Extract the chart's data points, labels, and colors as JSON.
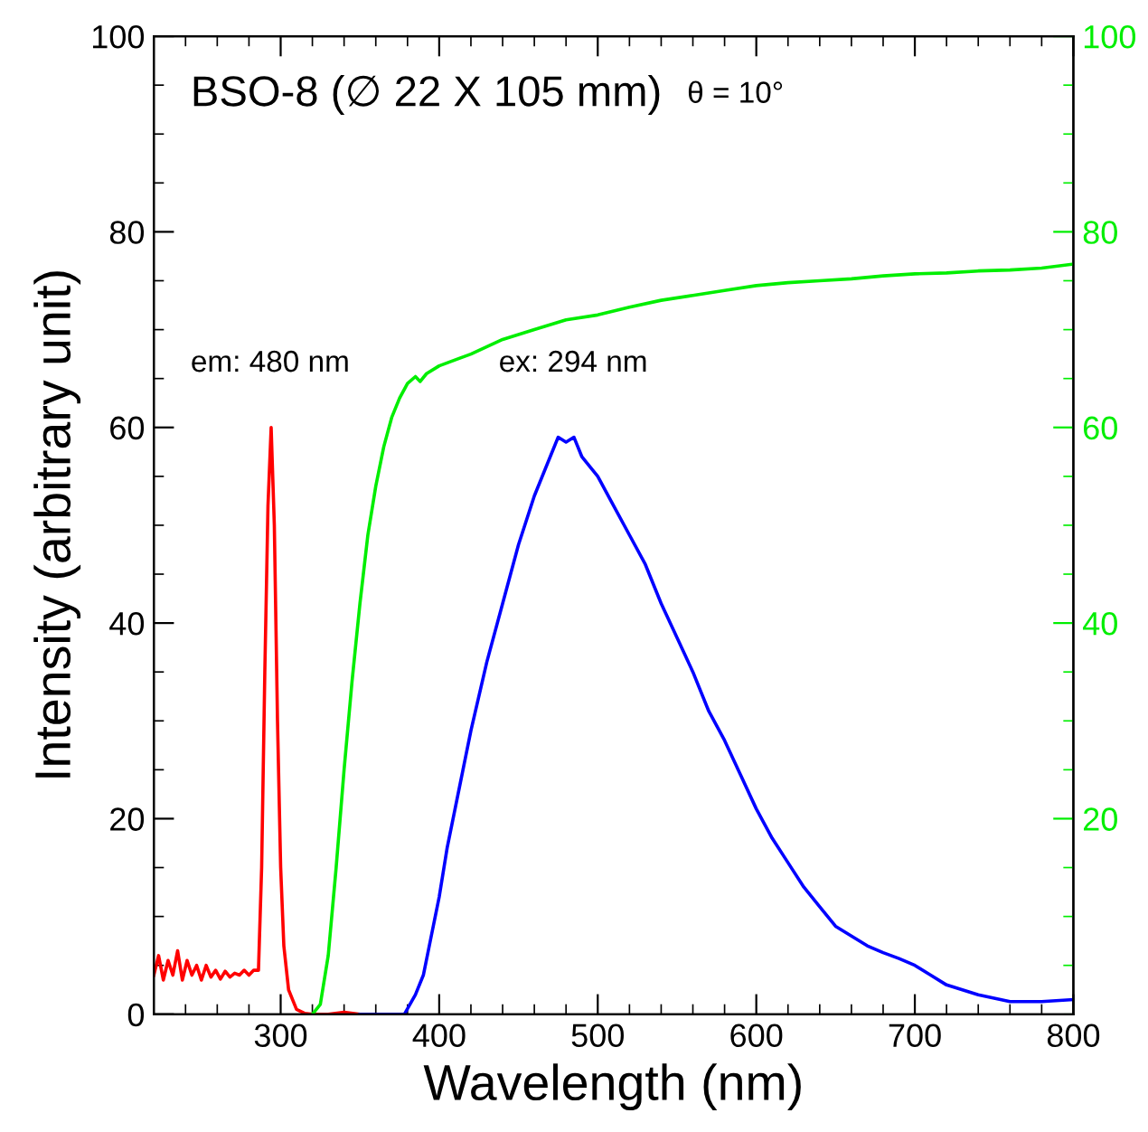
{
  "chart_data": {
    "type": "line",
    "title": "BSO-8 (∅ 22 X 105 mm)",
    "xlabel": "Wavelength (nm)",
    "ylabel": "Intensity (arbitrary unit)",
    "annotations": [
      "θ = 10°",
      "em: 480 nm",
      "ex: 294 nm"
    ],
    "xlim": [
      220,
      800
    ],
    "xticks": [
      300,
      400,
      500,
      600,
      700,
      800
    ],
    "ylim": [
      0,
      100
    ],
    "yticks": [
      0,
      20,
      40,
      60,
      80,
      100
    ],
    "y2lim": [
      0,
      100
    ],
    "y2ticks": [
      20,
      40,
      60,
      80,
      100
    ],
    "grid": false,
    "legend": false,
    "line_style": "solid",
    "marker": "none",
    "series": [
      {
        "color": "#ff0000",
        "x": [
          220,
          223,
          226,
          229,
          232,
          235,
          238,
          241,
          244,
          247,
          250,
          253,
          256,
          259,
          262,
          265,
          268,
          271,
          274,
          277,
          280,
          283,
          286,
          288,
          290,
          292,
          294,
          296,
          298,
          300,
          302,
          305,
          310,
          315,
          320,
          330,
          340,
          350
        ],
        "values": [
          4,
          6,
          3.5,
          5.5,
          4,
          6.5,
          3.5,
          5.5,
          4,
          5,
          3.5,
          5,
          3.8,
          4.5,
          3.6,
          4.4,
          3.8,
          4.2,
          4,
          4.5,
          4,
          4.5,
          4.5,
          15,
          35,
          52,
          60,
          50,
          30,
          15,
          7,
          2.5,
          0.5,
          0.1,
          0,
          0,
          0.2,
          0
        ]
      },
      {
        "color": "#00ee00",
        "axis": "y2",
        "x": [
          320,
          325,
          330,
          335,
          340,
          345,
          350,
          355,
          360,
          365,
          370,
          375,
          380,
          385,
          388,
          392,
          400,
          420,
          440,
          460,
          480,
          500,
          520,
          540,
          560,
          580,
          600,
          620,
          640,
          660,
          680,
          700,
          720,
          740,
          760,
          780,
          800
        ],
        "values": [
          0,
          1,
          6,
          15,
          25,
          34,
          42,
          49,
          54,
          58,
          61,
          63,
          64.5,
          65.2,
          64.7,
          65.5,
          66.3,
          67.5,
          69,
          70,
          71,
          71.5,
          72.3,
          73,
          73.5,
          74,
          74.5,
          74.8,
          75,
          75.2,
          75.5,
          75.7,
          75.8,
          76,
          76.1,
          76.3,
          76.7
        ]
      },
      {
        "color": "#0000ff",
        "x": [
          350,
          365,
          378,
          385,
          390,
          395,
          400,
          405,
          410,
          415,
          420,
          430,
          440,
          450,
          460,
          470,
          475,
          480,
          485,
          490,
          500,
          510,
          520,
          530,
          540,
          550,
          560,
          570,
          580,
          590,
          600,
          610,
          620,
          630,
          640,
          650,
          660,
          670,
          680,
          690,
          700,
          710,
          720,
          730,
          740,
          760,
          780,
          800
        ],
        "values": [
          0,
          0,
          0,
          2,
          4,
          8,
          12,
          17,
          21,
          25,
          29,
          36,
          42,
          48,
          53,
          57,
          59,
          58.5,
          59,
          57,
          55,
          52,
          49,
          46,
          42,
          38.5,
          35,
          31,
          28,
          24.5,
          21,
          18,
          15.5,
          13,
          11,
          9,
          8,
          7,
          6.3,
          5.7,
          5,
          4,
          3,
          2.5,
          2,
          1.3,
          1.3,
          1.5
        ]
      }
    ]
  }
}
